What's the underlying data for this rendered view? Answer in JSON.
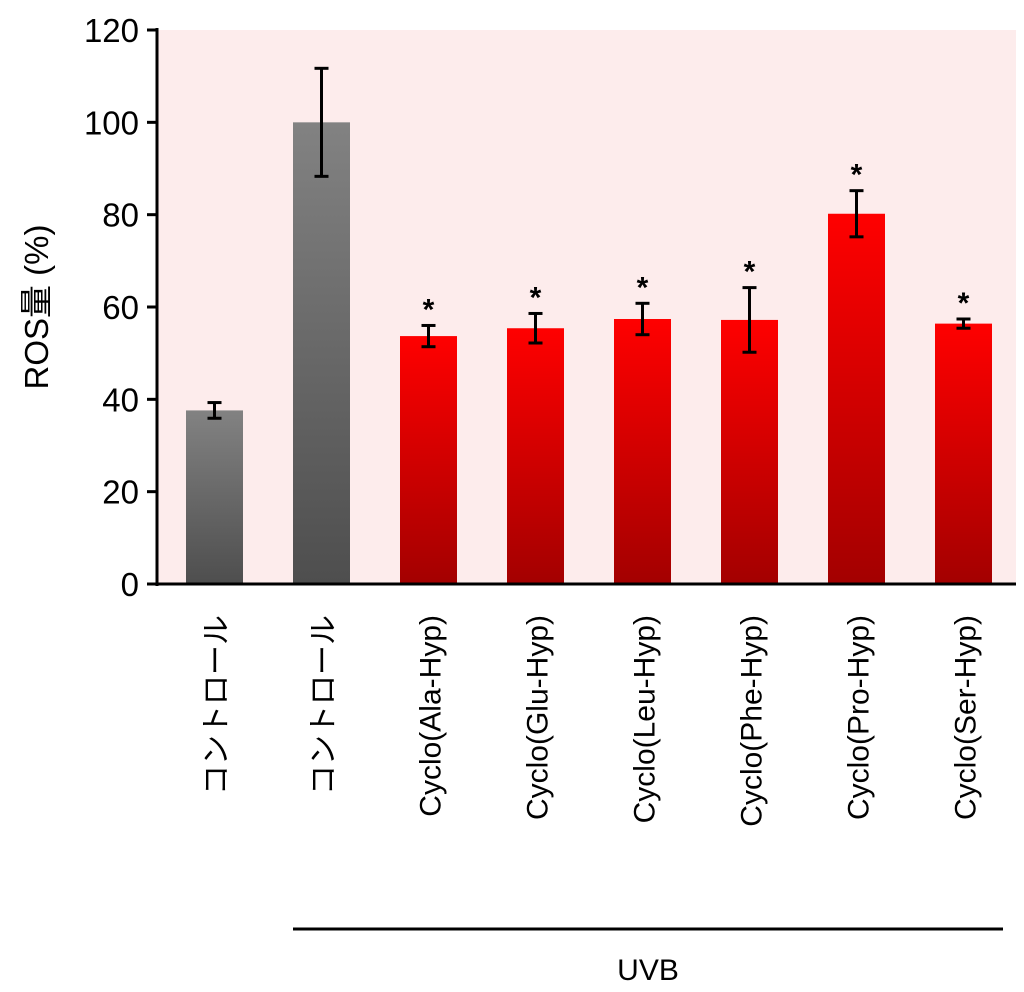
{
  "chart_data": {
    "type": "bar",
    "title": "",
    "ylabel": "ROS量 (%)",
    "xlabel": "",
    "ylim": [
      0,
      120
    ],
    "yticks": [
      0,
      20,
      40,
      60,
      80,
      100,
      120
    ],
    "grid": false,
    "categories": [
      "コントロール",
      "コントロール",
      "Cyclo(Ala-Hyp)",
      "Cyclo(Glu-Hyp)",
      "Cyclo(Leu-Hyp)",
      "Cyclo(Phe-Hyp)",
      "Cyclo(Pro-Hyp)",
      "Cyclo(Ser-Hyp)"
    ],
    "values": [
      37.6,
      100,
      53.7,
      55.4,
      57.4,
      57.2,
      80.2,
      56.4
    ],
    "errors": [
      1.7,
      11.7,
      2.3,
      3.2,
      3.4,
      7.0,
      5.0,
      1.0
    ],
    "significance": [
      "",
      "",
      "*",
      "*",
      "*",
      "*",
      "*",
      "*"
    ],
    "bar_colors": [
      "gray",
      "gray",
      "red",
      "red",
      "red",
      "red",
      "red",
      "red"
    ],
    "group_label": {
      "text": "UVB",
      "from_category": 1,
      "to_category": 7
    },
    "colors": {
      "plot_background": "#fdecec",
      "gray_top": "#828282",
      "gray_bottom": "#4e4e4e",
      "red_top": "#ff0000",
      "red_bottom": "#a30000",
      "axis": "#000000"
    }
  }
}
